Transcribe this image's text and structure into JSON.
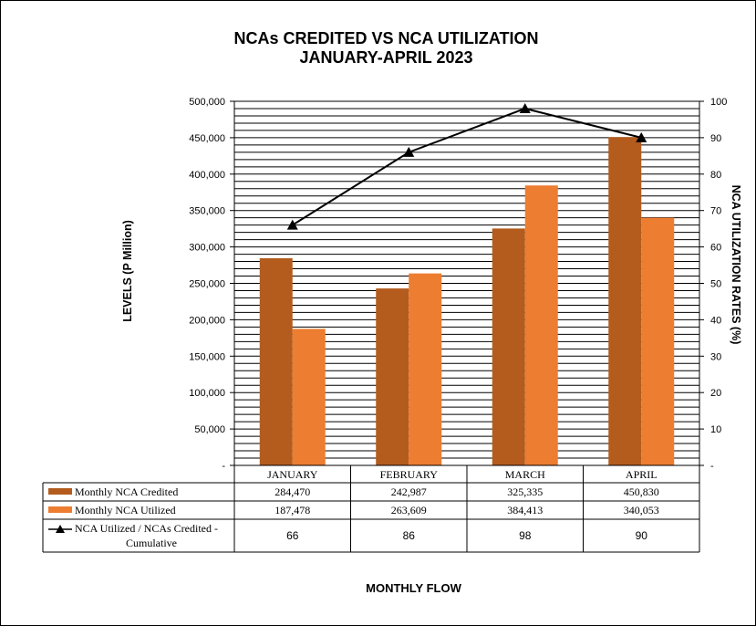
{
  "chart_data": {
    "type": "bar",
    "title": "NCAs CREDITED VS NCA UTILIZATION",
    "subtitle": "JANUARY-APRIL 2023",
    "xlabel": "MONTHLY FLOW",
    "ylabel": "LEVELS (P Million)",
    "y2label": "NCA UTILIZATION RATES (%)",
    "categories": [
      "JANUARY",
      "FEBRUARY",
      "MARCH",
      "APRIL"
    ],
    "ylim": [
      0,
      500000
    ],
    "y2lim": [
      0,
      100
    ],
    "y_ticks": [
      "-",
      "50,000",
      "100,000",
      "150,000",
      "200,000",
      "250,000",
      "300,000",
      "350,000",
      "400,000",
      "450,000",
      "500,000"
    ],
    "y2_ticks": [
      "-",
      "10",
      "20",
      "30",
      "40",
      "50",
      "60",
      "70",
      "80",
      "90",
      "100"
    ],
    "grid": true,
    "legend_placement": "data table below chart",
    "series": [
      {
        "name": "Monthly NCA Credited",
        "type": "bar",
        "axis": "left",
        "color": "#B35C1E",
        "values": [
          284470,
          242987,
          325335,
          450830
        ],
        "labels": [
          "284,470",
          "242,987",
          "325,335",
          "450,830"
        ]
      },
      {
        "name": "Monthly NCA Utilized",
        "type": "bar",
        "axis": "left",
        "color": "#ED7D31",
        "values": [
          187478,
          263609,
          384413,
          340053
        ],
        "labels": [
          "187,478",
          "263,609",
          "384,413",
          "340,053"
        ]
      },
      {
        "name_line1": "NCA Utilized / NCAs Credited -",
        "name_line2": "Cumulative",
        "type": "line",
        "axis": "right",
        "color": "#000000",
        "values": [
          66,
          86,
          98,
          90
        ],
        "labels": [
          "66",
          "86",
          "98",
          "90"
        ]
      }
    ]
  }
}
